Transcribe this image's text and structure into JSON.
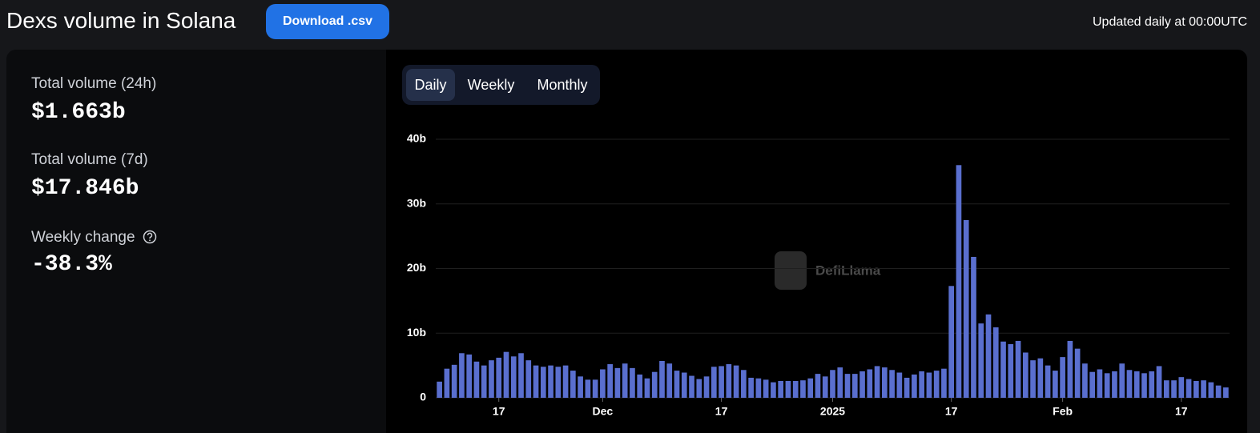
{
  "header": {
    "title": "Dexs volume in Solana",
    "download_button": "Download .csv",
    "update_note": "Updated daily at 00:00UTC"
  },
  "stats": [
    {
      "label": "Total volume (24h)",
      "value": "$1.663b"
    },
    {
      "label": "Total volume (7d)",
      "value": "$17.846b"
    },
    {
      "label": "Weekly change",
      "value": "-38.3%"
    }
  ],
  "tabs": [
    "Daily",
    "Weekly",
    "Monthly"
  ],
  "watermark": "DefiLlama",
  "chart_data": {
    "type": "bar",
    "color": "#5a6fcf",
    "grid": true,
    "categories": [
      null,
      null,
      null,
      null,
      null,
      null,
      null,
      null,
      "17",
      null,
      null,
      null,
      null,
      null,
      null,
      null,
      null,
      null,
      null,
      null,
      null,
      null,
      "Dec",
      null,
      null,
      null,
      null,
      null,
      null,
      null,
      null,
      null,
      null,
      null,
      null,
      null,
      null,
      null,
      "17",
      null,
      null,
      null,
      null,
      null,
      null,
      null,
      null,
      null,
      null,
      null,
      null,
      null,
      null,
      "2025",
      null,
      null,
      null,
      null,
      null,
      null,
      null,
      null,
      null,
      null,
      null,
      null,
      null,
      null,
      null,
      "17",
      null,
      null,
      null,
      null,
      null,
      null,
      null,
      null,
      null,
      null,
      null,
      null,
      null,
      null,
      "Feb",
      null,
      null,
      null,
      null,
      null,
      null,
      null,
      null,
      null,
      null,
      null,
      null,
      null,
      null,
      null,
      "17",
      null,
      null,
      null,
      null,
      null,
      null
    ],
    "values": [
      2.5,
      4.5,
      5.1,
      6.9,
      6.7,
      5.6,
      5.0,
      5.8,
      6.2,
      7.1,
      6.4,
      6.9,
      5.8,
      5.0,
      4.8,
      5.0,
      4.8,
      5.0,
      4.2,
      3.3,
      2.8,
      2.8,
      4.4,
      5.2,
      4.6,
      5.3,
      4.6,
      3.6,
      3.0,
      4.0,
      5.7,
      5.3,
      4.2,
      3.9,
      3.4,
      2.9,
      3.3,
      4.8,
      4.9,
      5.2,
      5.0,
      4.3,
      3.1,
      3.0,
      2.8,
      2.4,
      2.6,
      2.6,
      2.6,
      2.7,
      3.0,
      3.7,
      3.3,
      4.3,
      4.7,
      3.7,
      3.7,
      4.1,
      4.4,
      4.9,
      4.7,
      4.3,
      3.9,
      3.1,
      3.6,
      4.1,
      3.9,
      4.2,
      4.5,
      17.3,
      36.0,
      27.5,
      21.8,
      11.5,
      12.9,
      10.9,
      8.7,
      8.3,
      8.8,
      7.0,
      5.8,
      6.1,
      5.0,
      4.2,
      6.3,
      8.8,
      7.6,
      5.3,
      4.0,
      4.4,
      3.8,
      4.1,
      5.3,
      4.3,
      4.1,
      3.8,
      4.1,
      4.9,
      2.7,
      2.7,
      3.2,
      2.9,
      2.6,
      2.7,
      2.4,
      1.9,
      1.6
    ],
    "ylim": [
      0,
      40
    ],
    "yticks": [
      0,
      {
        "value": 10,
        "label": "10b"
      },
      {
        "value": 20,
        "label": "20b"
      },
      {
        "value": 30,
        "label": "30b"
      },
      {
        "value": 40,
        "label": "40b"
      }
    ]
  }
}
